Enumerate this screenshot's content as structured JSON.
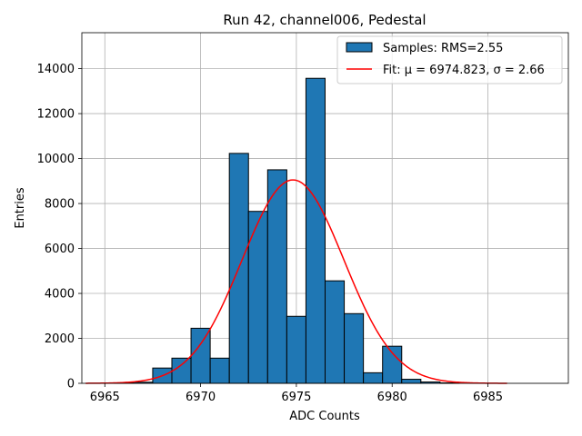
{
  "chart_data": {
    "type": "bar",
    "title": "Run 42, channel006, Pedestal",
    "xlabel": "ADC Counts",
    "ylabel": "Entries",
    "xlim": [
      6963.8,
      6989.2
    ],
    "ylim": [
      0,
      15600
    ],
    "grid": true,
    "xticks": [
      6965,
      6970,
      6975,
      6980,
      6985
    ],
    "yticks": [
      0,
      2000,
      4000,
      6000,
      8000,
      10000,
      12000,
      14000
    ],
    "bin_width": 1,
    "bins": [
      {
        "x": 6966,
        "value": 20
      },
      {
        "x": 6967,
        "value": 50
      },
      {
        "x": 6968,
        "value": 680
      },
      {
        "x": 6969,
        "value": 1120
      },
      {
        "x": 6970,
        "value": 2450
      },
      {
        "x": 6971,
        "value": 1120
      },
      {
        "x": 6972,
        "value": 10230
      },
      {
        "x": 6973,
        "value": 7650
      },
      {
        "x": 6974,
        "value": 9500
      },
      {
        "x": 6975,
        "value": 2980
      },
      {
        "x": 6976,
        "value": 13570
      },
      {
        "x": 6977,
        "value": 4560
      },
      {
        "x": 6978,
        "value": 3100
      },
      {
        "x": 6979,
        "value": 470
      },
      {
        "x": 6980,
        "value": 1650
      },
      {
        "x": 6981,
        "value": 180
      },
      {
        "x": 6982,
        "value": 60
      },
      {
        "x": 6983,
        "value": 20
      }
    ],
    "fit": {
      "mu": 6974.823,
      "sigma": 2.66,
      "amplitude": 9050,
      "x_range": [
        6964,
        6986
      ]
    },
    "colors": {
      "bar_fill": "#1f77b4",
      "bar_edge": "#000000",
      "fit_line": "#ff0000",
      "grid": "#b0b0b0"
    },
    "legend": {
      "position": "top-right",
      "entries": [
        {
          "label": "Samples: RMS=2.55",
          "kind": "bar"
        },
        {
          "label": "Fit: μ = 6974.823, σ = 2.66",
          "kind": "line"
        }
      ]
    }
  }
}
